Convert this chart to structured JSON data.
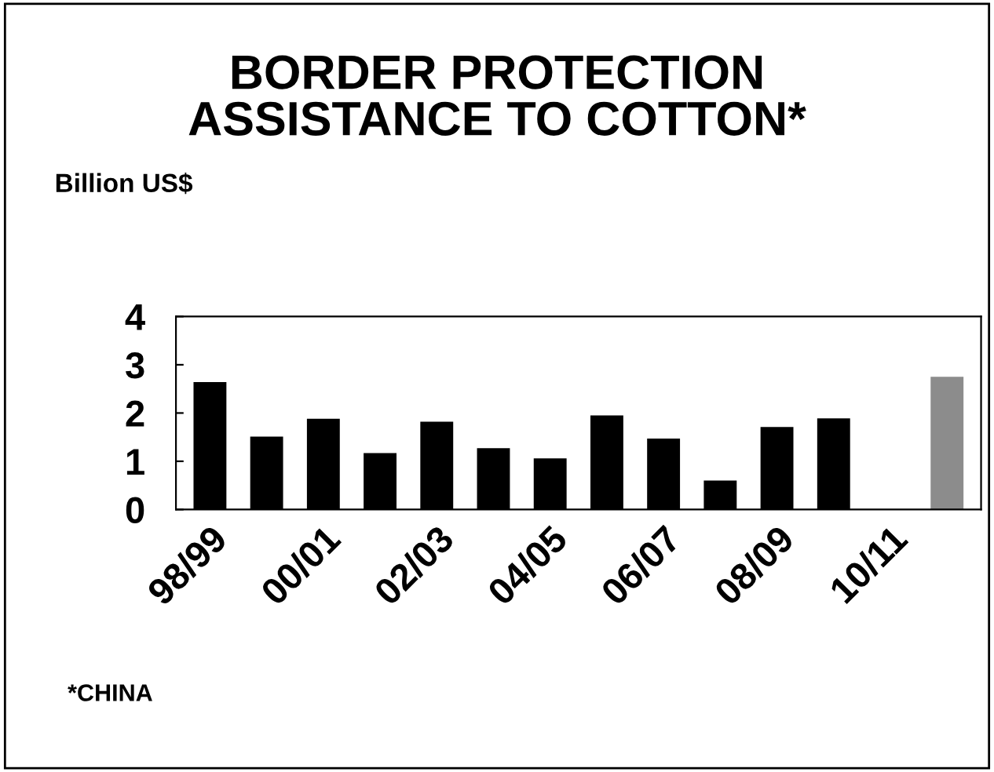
{
  "chart_data": {
    "type": "bar",
    "title": "BORDER PROTECTION\nASSISTANCE TO COTTON*",
    "ylabel": "Billion US$",
    "categories": [
      "98/99",
      null,
      "00/01",
      null,
      "02/03",
      null,
      "04/05",
      null,
      "06/07",
      null,
      "08/09",
      null,
      "10/11",
      null
    ],
    "values": [
      2.64,
      1.51,
      1.88,
      1.17,
      1.82,
      1.27,
      1.06,
      1.95,
      1.47,
      0.6,
      1.71,
      1.89,
      null,
      2.75
    ],
    "colors": [
      "#000000",
      "#000000",
      "#000000",
      "#000000",
      "#000000",
      "#000000",
      "#000000",
      "#000000",
      "#000000",
      "#000000",
      "#000000",
      "#000000",
      "#000000",
      "#8c8c8c"
    ],
    "ylim": [
      0,
      4
    ],
    "yticks": [
      0,
      1,
      2,
      3,
      4
    ],
    "grid": false,
    "legend": false,
    "annotations": [
      "*CHINA"
    ]
  }
}
